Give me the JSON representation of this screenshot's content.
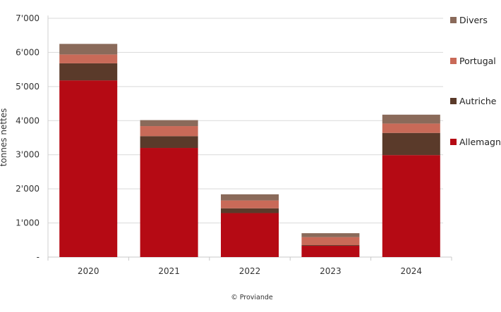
{
  "chart_data": {
    "type": "bar",
    "stacked": true,
    "title": "",
    "xlabel": "",
    "ylabel": "tonnes nettes",
    "ylim": [
      0,
      7000
    ],
    "yticks": [
      0,
      1000,
      2000,
      3000,
      4000,
      5000,
      6000,
      7000
    ],
    "ytick_labels": [
      "-",
      "1'000",
      "2'000",
      "3'000",
      "4'000",
      "5'000",
      "6'000",
      "7'000"
    ],
    "grid": true,
    "legend_position": "right",
    "categories": [
      "2020",
      "2021",
      "2022",
      "2023",
      "2024"
    ],
    "series": [
      {
        "name": "Allemagne",
        "color": "#b50a14",
        "values": [
          5180,
          3200,
          1290,
          330,
          2990
        ]
      },
      {
        "name": "Autriche",
        "color": "#5a3a2a",
        "values": [
          500,
          345,
          140,
          20,
          650
        ]
      },
      {
        "name": "Portugal",
        "color": "#c96a58",
        "values": [
          260,
          295,
          230,
          235,
          275
        ]
      },
      {
        "name": "Divers",
        "color": "#8a6a5a",
        "values": [
          310,
          175,
          180,
          115,
          260
        ]
      }
    ],
    "legend_order": [
      "Divers",
      "Portugal",
      "Autriche",
      "Allemagne"
    ]
  },
  "footer": {
    "credit": "© Proviande"
  }
}
